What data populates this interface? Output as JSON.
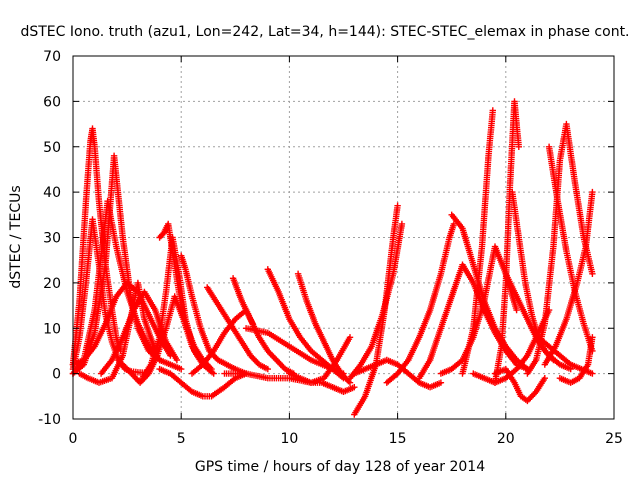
{
  "chart_data": {
    "type": "scatter",
    "title": "dSTEC Iono. truth (azu1, Lon=242, Lat=34, h=144): STEC-STEC_elemax in phase cont.",
    "xlabel": "GPS time / hours of day 128 of year 2014",
    "ylabel": "dSTEC  / TECUs",
    "xlim": [
      0,
      25
    ],
    "ylim": [
      -10,
      70
    ],
    "x_ticks": [
      "0",
      "5",
      "10",
      "15",
      "20",
      "25"
    ],
    "y_ticks": [
      "-10",
      "0",
      "10",
      "20",
      "30",
      "40",
      "50",
      "60",
      "70"
    ],
    "grid": true,
    "legend": "none",
    "marker": "plus",
    "color": "#ff0000",
    "series": [
      {
        "x": [
          0.0,
          0.3,
          0.6,
          0.9,
          1.2,
          1.5,
          1.8,
          2.1,
          2.4,
          2.7,
          3.0,
          3.3
        ],
        "values": [
          1,
          8,
          20,
          34,
          24,
          13,
          7,
          3,
          1,
          0.5,
          0.3,
          0.2
        ]
      },
      {
        "x": [
          0.0,
          0.3,
          0.6,
          0.8,
          0.9,
          1.0,
          1.2,
          1.5,
          1.8,
          2.0,
          2.2
        ],
        "values": [
          2,
          16,
          38,
          51,
          54,
          50,
          38,
          24,
          14,
          8,
          5
        ]
      },
      {
        "x": [
          0.0,
          0.5,
          1.0,
          1.3,
          1.6,
          2.0,
          2.5,
          3.0,
          3.5,
          4.0,
          4.5,
          5.0
        ],
        "values": [
          0,
          3,
          14,
          26,
          38,
          28,
          18,
          11,
          6,
          3,
          2,
          1
        ]
      },
      {
        "x": [
          0.0,
          0.5,
          1.0,
          1.5,
          1.9,
          2.3,
          2.7,
          3.0,
          3.5,
          4.0
        ],
        "values": [
          0,
          2,
          9,
          24,
          48,
          30,
          16,
          10,
          5,
          3
        ]
      },
      {
        "x": [
          0.0,
          0.5,
          1.0,
          1.5,
          2.0,
          2.5,
          3.0,
          3.5,
          4.0,
          4.5
        ],
        "values": [
          2,
          3,
          6,
          11,
          17,
          20,
          18,
          13,
          8,
          4
        ]
      },
      {
        "x": [
          0.3,
          0.7,
          1.2,
          1.8,
          2.3,
          2.7,
          3.0,
          3.3,
          3.8
        ],
        "values": [
          0,
          -1,
          -2,
          -1,
          4,
          13,
          20,
          12,
          5
        ]
      },
      {
        "x": [
          1.3,
          1.8,
          2.3,
          2.8,
          3.3,
          3.8,
          4.3,
          4.8
        ],
        "values": [
          0,
          3,
          8,
          14,
          18,
          14,
          7,
          3
        ]
      },
      {
        "x": [
          2.3,
          2.7,
          3.1,
          3.5,
          3.9,
          4.3,
          4.7,
          5.1,
          5.5,
          6.0
        ],
        "values": [
          2,
          0,
          -2,
          0,
          4,
          10,
          17,
          12,
          6,
          2
        ]
      },
      {
        "x": [
          3.2,
          3.6,
          4.0,
          4.3,
          4.6,
          4.9,
          5.2,
          5.6,
          6.0,
          6.5
        ],
        "values": [
          -1,
          2,
          8,
          18,
          30,
          22,
          12,
          5,
          2,
          0
        ]
      },
      {
        "x": [
          4.0,
          4.2,
          4.4,
          4.6,
          4.9,
          5.2,
          5.6,
          6.0,
          6.4
        ],
        "values": [
          30,
          31,
          33,
          27,
          18,
          11,
          6,
          3,
          1
        ]
      },
      {
        "x": [
          5.0,
          5.2,
          5.5,
          5.9,
          6.3,
          6.7,
          7.1,
          7.5,
          8.0
        ],
        "values": [
          26,
          23,
          17,
          10,
          5,
          3,
          2,
          1,
          0
        ]
      },
      {
        "x": [
          4.0,
          4.5,
          5.0,
          5.5,
          6.0,
          6.4,
          7.0,
          7.5,
          8.0
        ],
        "values": [
          1,
          0,
          -2,
          -4,
          -5,
          -5,
          -3,
          -1,
          0
        ]
      },
      {
        "x": [
          6.2,
          6.6,
          7.0,
          7.4,
          7.8,
          8.2,
          8.6,
          9.0
        ],
        "values": [
          19,
          16,
          13,
          10,
          7,
          4,
          2,
          1
        ]
      },
      {
        "x": [
          7.4,
          7.8,
          8.2,
          8.6,
          9.0,
          9.4,
          9.8,
          10.2
        ],
        "values": [
          21,
          16,
          12,
          8,
          5,
          3,
          1,
          0
        ]
      },
      {
        "x": [
          5.5,
          6.0,
          6.5,
          7.0,
          7.5,
          8.0,
          8.3
        ],
        "values": [
          0,
          2,
          5,
          9,
          12,
          14,
          11
        ]
      },
      {
        "x": [
          9.0,
          9.5,
          10.0,
          10.5,
          11.0,
          11.5,
          12.0,
          12.5
        ],
        "values": [
          23,
          18,
          12,
          8,
          5,
          3,
          1,
          -1
        ]
      },
      {
        "x": [
          10.4,
          10.8,
          11.2,
          11.6,
          12.0,
          12.4,
          12.8
        ],
        "values": [
          22,
          16,
          11,
          7,
          3,
          0,
          -2
        ]
      },
      {
        "x": [
          7.0,
          8.0,
          9.0,
          10.0,
          11.0,
          11.6,
          12.2,
          12.8
        ],
        "values": [
          0,
          0,
          -1,
          -1,
          -2,
          -1,
          3,
          8
        ]
      },
      {
        "x": [
          10.0,
          10.5,
          11.0,
          11.5,
          12.0,
          12.5,
          13.0
        ],
        "values": [
          0,
          -1,
          -2,
          -2,
          -3,
          -4,
          -3
        ]
      },
      {
        "x": [
          8.0,
          9.0,
          10.0,
          11.0,
          12.0,
          12.5
        ],
        "values": [
          10,
          9,
          6,
          3,
          1,
          0
        ]
      },
      {
        "x": [
          13.0,
          13.5,
          14.0,
          14.4,
          14.8,
          15.0
        ],
        "values": [
          -9,
          -5,
          2,
          14,
          30,
          37
        ]
      },
      {
        "x": [
          12.8,
          13.3,
          13.8,
          14.3,
          14.8,
          15.2
        ],
        "values": [
          -1,
          2,
          6,
          13,
          22,
          33
        ]
      },
      {
        "x": [
          13.0,
          13.5,
          14.0,
          14.5,
          15.0,
          15.5,
          16.0,
          16.5,
          17.0
        ],
        "values": [
          0,
          1,
          2,
          3,
          2,
          0,
          -2,
          -3,
          -2
        ]
      },
      {
        "x": [
          14.5,
          15.0,
          15.5,
          16.0,
          16.5,
          17.0,
          17.4,
          17.6
        ],
        "values": [
          -2,
          0,
          3,
          8,
          14,
          22,
          30,
          33
        ]
      },
      {
        "x": [
          16.0,
          16.5,
          17.0,
          17.5,
          18.0,
          18.5,
          19.0,
          19.5,
          20.0,
          20.5,
          21.0
        ],
        "values": [
          -1,
          3,
          10,
          17,
          24,
          20,
          14,
          9,
          5,
          2,
          1
        ]
      },
      {
        "x": [
          17.0,
          17.5,
          18.0,
          18.5,
          19.0,
          19.5,
          20.0,
          20.5
        ],
        "values": [
          0,
          1,
          3,
          8,
          16,
          28,
          22,
          14
        ]
      },
      {
        "x": [
          18.0,
          18.5,
          18.9,
          19.2,
          19.4
        ],
        "values": [
          0,
          10,
          28,
          48,
          58
        ]
      },
      {
        "x": [
          17.5,
          18.0,
          18.5,
          19.0,
          19.5,
          20.0,
          20.5,
          21.0
        ],
        "values": [
          35,
          32,
          24,
          16,
          10,
          6,
          3,
          1
        ]
      },
      {
        "x": [
          18.5,
          19.0,
          19.5,
          20.0,
          20.5,
          21.0,
          21.5,
          22.0
        ],
        "values": [
          0,
          -1,
          -2,
          -1,
          1,
          4,
          9,
          14
        ]
      },
      {
        "x": [
          19.5,
          19.8,
          20.0,
          20.2,
          20.4,
          20.6
        ],
        "values": [
          -2,
          6,
          20,
          42,
          60,
          50
        ]
      },
      {
        "x": [
          20.3,
          20.6,
          20.9,
          21.2,
          21.5,
          21.8,
          22.2
        ],
        "values": [
          40,
          30,
          20,
          13,
          8,
          5,
          3
        ]
      },
      {
        "x": [
          19.5,
          20.0,
          20.4,
          20.7,
          21.0,
          21.4,
          21.8
        ],
        "values": [
          0,
          1,
          -2,
          -5,
          -6,
          -4,
          -1
        ]
      },
      {
        "x": [
          21.0,
          21.4,
          21.8,
          22.2,
          22.5,
          22.8,
          23.2,
          23.6,
          24.0
        ],
        "values": [
          0,
          3,
          11,
          28,
          47,
          55,
          42,
          30,
          22
        ]
      },
      {
        "x": [
          20.0,
          20.5,
          21.0,
          21.5,
          22.0,
          22.5,
          23.0
        ],
        "values": [
          22,
          17,
          12,
          7,
          4,
          2,
          1
        ]
      },
      {
        "x": [
          22.0,
          22.4,
          22.8,
          23.2,
          23.6,
          24.0
        ],
        "values": [
          50,
          38,
          27,
          18,
          11,
          5
        ]
      },
      {
        "x": [
          21.8,
          22.3,
          22.8,
          23.3,
          23.7,
          24.0
        ],
        "values": [
          2,
          6,
          12,
          20,
          28,
          40
        ]
      },
      {
        "x": [
          22.5,
          23.0,
          23.4,
          23.8,
          24.0
        ],
        "values": [
          -1,
          -2,
          -1,
          2,
          8
        ]
      },
      {
        "x": [
          21.5,
          22.0,
          22.5,
          23.0,
          23.5,
          24.0
        ],
        "values": [
          8,
          6,
          4,
          2,
          1,
          0
        ]
      }
    ]
  }
}
